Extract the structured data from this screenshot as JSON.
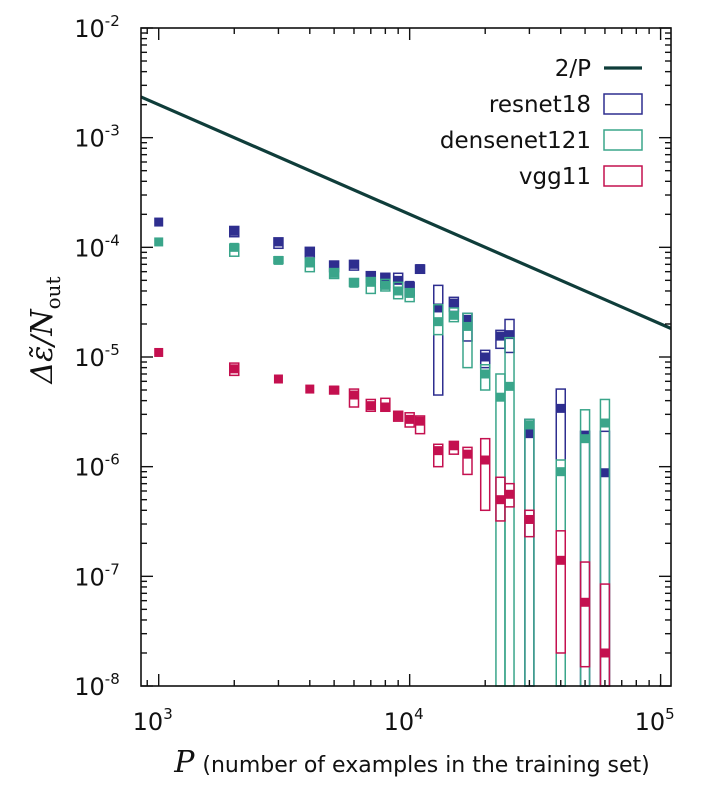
{
  "chart_data": {
    "type": "scatter",
    "scale": "log-log",
    "xlabel": {
      "symbol": "P",
      "text": "(number of examples in the training set)"
    },
    "ylabel": {
      "text": "Δε̃/N",
      "subscript": "out"
    },
    "xlim": [
      850,
      110000
    ],
    "ylim": [
      1e-08,
      0.01
    ],
    "x_ticks": [
      {
        "base": "10",
        "exp": "3",
        "value": 1000
      },
      {
        "base": "10",
        "exp": "4",
        "value": 10000
      },
      {
        "base": "10",
        "exp": "5",
        "value": 100000
      }
    ],
    "y_ticks": [
      {
        "base": "10",
        "exp": "-8",
        "value": 1e-08
      },
      {
        "base": "10",
        "exp": "-7",
        "value": 1e-07
      },
      {
        "base": "10",
        "exp": "-6",
        "value": 1e-06
      },
      {
        "base": "10",
        "exp": "-5",
        "value": 1e-05
      },
      {
        "base": "10",
        "exp": "-4",
        "value": 0.0001
      },
      {
        "base": "10",
        "exp": "-3",
        "value": 0.001
      },
      {
        "base": "10",
        "exp": "-2",
        "value": 0.01
      }
    ],
    "reference_line": {
      "name": "2/P",
      "color": "#0f3d3a",
      "x": [
        850,
        110000
      ],
      "y": [
        0.002353,
        1.82e-05
      ]
    },
    "legend": [
      {
        "label": "2/P",
        "kind": "line",
        "color": "#0f3d3a"
      },
      {
        "label": "resnet18",
        "kind": "box",
        "color": "#2e2e8f"
      },
      {
        "label": "densenet121",
        "kind": "box",
        "color": "#3aa58a"
      },
      {
        "label": "vgg11",
        "kind": "box",
        "color": "#c4104f"
      }
    ],
    "legend_placement": "top-right",
    "series": [
      {
        "name": "resnet18",
        "color": "#2e2e8f",
        "points": [
          {
            "x": 1000,
            "y": 0.00017,
            "lo": null,
            "hi": null
          },
          {
            "x": 2000,
            "y": 0.00014,
            "lo": 0.000125,
            "hi": 0.000155
          },
          {
            "x": 3000,
            "y": 0.000112,
            "lo": 9.8e-05,
            "hi": 0.000122
          },
          {
            "x": 4000,
            "y": 9e-05,
            "lo": 8e-05,
            "hi": 0.0001
          },
          {
            "x": 5000,
            "y": 6.8e-05,
            "lo": 6e-05,
            "hi": 7.5e-05
          },
          {
            "x": 6000,
            "y": 7e-05,
            "lo": 6.2e-05,
            "hi": 7.6e-05
          },
          {
            "x": 7000,
            "y": 5.5e-05,
            "lo": 4.8e-05,
            "hi": 6e-05
          },
          {
            "x": 8000,
            "y": 5.2e-05,
            "lo": 4.3e-05,
            "hi": 5.8e-05
          },
          {
            "x": 9000,
            "y": 5e-05,
            "lo": 4.2e-05,
            "hi": 5.8e-05
          },
          {
            "x": 10000,
            "y": 4.5e-05,
            "lo": 3.6e-05,
            "hi": 4.8e-05
          },
          {
            "x": 11000,
            "y": 6.4e-05,
            "lo": 5.8e-05,
            "hi": 6.9e-05
          },
          {
            "x": 13000,
            "y": 2.8e-05,
            "lo": 4.5e-06,
            "hi": 4.5e-05
          },
          {
            "x": 15000,
            "y": 3.1e-05,
            "lo": 2.6e-05,
            "hi": 3.5e-05
          },
          {
            "x": 17000,
            "y": 2.2e-05,
            "lo": 1.4e-05,
            "hi": 2.5e-05
          },
          {
            "x": 20000,
            "y": 1e-05,
            "lo": 8e-06,
            "hi": 1.15e-05
          },
          {
            "x": 23000,
            "y": 1.55e-05,
            "lo": 1.2e-05,
            "hi": 1.75e-05
          },
          {
            "x": 25000,
            "y": 1.6e-05,
            "lo": 1.1e-05,
            "hi": 2.2e-05
          },
          {
            "x": 30000,
            "y": 2e-06,
            "lo": 1e-08,
            "hi": 2.7e-06
          },
          {
            "x": 40000,
            "y": 3.4e-06,
            "lo": 1e-08,
            "hi": 5.1e-06
          },
          {
            "x": 50000,
            "y": 1.9e-06,
            "lo": 1e-08,
            "hi": 2.1e-06
          },
          {
            "x": 60000,
            "y": 8.8e-07,
            "lo": 1e-08,
            "hi": 2.1e-06
          }
        ]
      },
      {
        "name": "densenet121",
        "color": "#3aa58a",
        "points": [
          {
            "x": 1000,
            "y": 0.000112,
            "lo": null,
            "hi": null
          },
          {
            "x": 2000,
            "y": 0.0001,
            "lo": 8.3e-05,
            "hi": 0.000107
          },
          {
            "x": 3000,
            "y": 7.6e-05,
            "lo": 7.1e-05,
            "hi": 8.2e-05
          },
          {
            "x": 4000,
            "y": 7.2e-05,
            "lo": 6e-05,
            "hi": 8e-05
          },
          {
            "x": 5000,
            "y": 5.8e-05,
            "lo": 5.2e-05,
            "hi": 6.4e-05
          },
          {
            "x": 6000,
            "y": 4.7e-05,
            "lo": 4.4e-05,
            "hi": 5.2e-05
          },
          {
            "x": 7000,
            "y": 4.8e-05,
            "lo": 3.8e-05,
            "hi": 5.3e-05
          },
          {
            "x": 8000,
            "y": 4.5e-05,
            "lo": 4e-05,
            "hi": 5.1e-05
          },
          {
            "x": 9000,
            "y": 4e-05,
            "lo": 3.4e-05,
            "hi": 4.8e-05
          },
          {
            "x": 10000,
            "y": 3.8e-05,
            "lo": 3.2e-05,
            "hi": 4.2e-05
          },
          {
            "x": 13000,
            "y": 2.1e-05,
            "lo": 1.6e-05,
            "hi": 3e-05
          },
          {
            "x": 15000,
            "y": 2.4e-05,
            "lo": 2.1e-05,
            "hi": 2.8e-05
          },
          {
            "x": 17000,
            "y": 1.9e-05,
            "lo": 8e-06,
            "hi": 2.5e-05
          },
          {
            "x": 20000,
            "y": 7e-06,
            "lo": 5e-06,
            "hi": 8.5e-06
          },
          {
            "x": 23000,
            "y": 4.3e-06,
            "lo": 1e-08,
            "hi": 7e-06
          },
          {
            "x": 25000,
            "y": 5.4e-06,
            "lo": 1e-08,
            "hi": 1.5e-05
          },
          {
            "x": 30000,
            "y": 2.4e-06,
            "lo": 1e-08,
            "hi": 2.7e-06
          },
          {
            "x": 40000,
            "y": 9e-07,
            "lo": 1e-08,
            "hi": 1.15e-06
          },
          {
            "x": 50000,
            "y": 1.8e-06,
            "lo": 1e-08,
            "hi": 3.3e-06
          },
          {
            "x": 60000,
            "y": 2.5e-06,
            "lo": 1e-08,
            "hi": 4.1e-06
          }
        ]
      },
      {
        "name": "vgg11",
        "color": "#c4104f",
        "points": [
          {
            "x": 1000,
            "y": 1.1e-05,
            "lo": null,
            "hi": null
          },
          {
            "x": 2000,
            "y": 7.8e-06,
            "lo": 6.8e-06,
            "hi": 8.8e-06
          },
          {
            "x": 3000,
            "y": 6.3e-06,
            "lo": null,
            "hi": null
          },
          {
            "x": 4000,
            "y": 5.1e-06,
            "lo": null,
            "hi": null
          },
          {
            "x": 5000,
            "y": 5e-06,
            "lo": 4.6e-06,
            "hi": 5.4e-06
          },
          {
            "x": 6000,
            "y": 4.5e-06,
            "lo": 3.5e-06,
            "hi": 5.1e-06
          },
          {
            "x": 7000,
            "y": 3.6e-06,
            "lo": 3.2e-06,
            "hi": 4.1e-06
          },
          {
            "x": 8000,
            "y": 3.5e-06,
            "lo": 3.2e-06,
            "hi": 4.2e-06
          },
          {
            "x": 9000,
            "y": 2.9e-06,
            "lo": 2.6e-06,
            "hi": 3.2e-06
          },
          {
            "x": 10000,
            "y": 2.7e-06,
            "lo": 2.3e-06,
            "hi": 3.1e-06
          },
          {
            "x": 11000,
            "y": 2.6e-06,
            "lo": 2e-06,
            "hi": 2.9e-06
          },
          {
            "x": 13000,
            "y": 1.4e-06,
            "lo": 1e-06,
            "hi": 1.6e-06
          },
          {
            "x": 15000,
            "y": 1.55e-06,
            "lo": 1.3e-06,
            "hi": 1.7e-06
          },
          {
            "x": 17000,
            "y": 1.3e-06,
            "lo": 8.5e-07,
            "hi": 1.5e-06
          },
          {
            "x": 20000,
            "y": 1.15e-06,
            "lo": 4e-07,
            "hi": 1.8e-06
          },
          {
            "x": 23000,
            "y": 5e-07,
            "lo": 3.2e-07,
            "hi": 8e-07
          },
          {
            "x": 25000,
            "y": 5.6e-07,
            "lo": 4.3e-07,
            "hi": 7e-07
          },
          {
            "x": 30000,
            "y": 3.3e-07,
            "lo": 2.3e-07,
            "hi": 4e-07
          },
          {
            "x": 40000,
            "y": 1.4e-07,
            "lo": 2e-08,
            "hi": 2.6e-07
          },
          {
            "x": 50000,
            "y": 5.8e-08,
            "lo": 1.5e-08,
            "hi": 1.35e-07
          },
          {
            "x": 60000,
            "y": 2e-08,
            "lo": 1e-08,
            "hi": 8.5e-08
          }
        ]
      }
    ]
  }
}
